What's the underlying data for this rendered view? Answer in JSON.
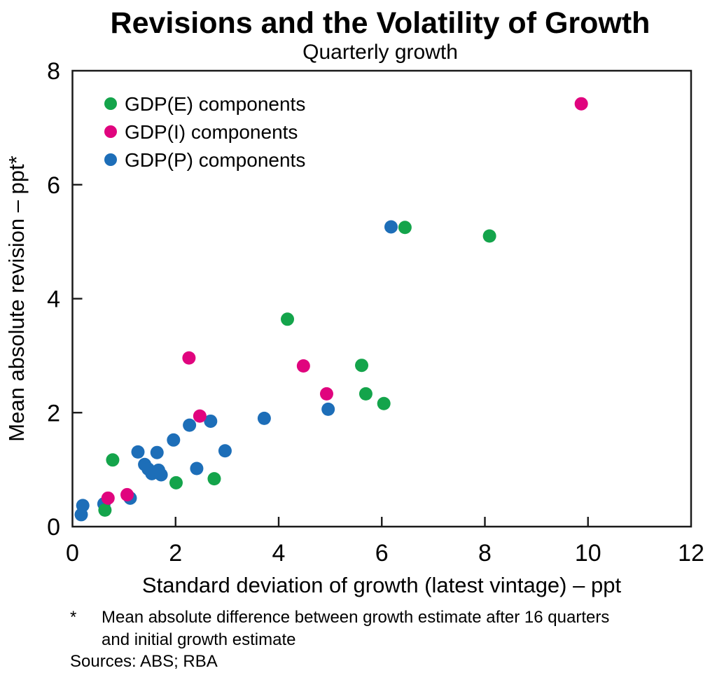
{
  "title": "Revisions and the Volatility of Growth",
  "subtitle": "Quarterly growth",
  "footnote": {
    "marker": "*",
    "lines": [
      "Mean absolute difference between growth estimate after 16 quarters",
      "and initial growth estimate"
    ]
  },
  "sources": "Sources: ABS; RBA",
  "chart_data": {
    "type": "scatter",
    "title": "Revisions and the Volatility of Growth",
    "subtitle": "Quarterly growth",
    "xlabel": "Standard deviation of growth (latest vintage) – ppt",
    "ylabel": "Mean absolute revision – ppt*",
    "xlim": [
      0,
      12
    ],
    "ylim": [
      0,
      8
    ],
    "x_ticks": [
      0,
      2,
      4,
      6,
      8,
      10,
      12
    ],
    "y_ticks": [
      0,
      2,
      4,
      6,
      8
    ],
    "grid": false,
    "legend_position": "top-left-inside",
    "frame_color": "#1a1a1a",
    "marker_radius": 9.5,
    "series": [
      {
        "name": "GDP(E) components",
        "color": "#14a44b",
        "z_order": 1,
        "points": [
          [
            0.63,
            0.29
          ],
          [
            0.78,
            1.17
          ],
          [
            2.01,
            0.77
          ],
          [
            2.75,
            0.84
          ],
          [
            4.17,
            3.64
          ],
          [
            5.61,
            2.83
          ],
          [
            5.69,
            2.33
          ],
          [
            6.04,
            2.16
          ],
          [
            6.45,
            5.25
          ],
          [
            8.09,
            5.1
          ]
        ]
      },
      {
        "name": "GDP(I) components",
        "color": "#e0047e",
        "z_order": 2,
        "points": [
          [
            0.69,
            0.5
          ],
          [
            1.06,
            0.56
          ],
          [
            2.26,
            2.96
          ],
          [
            2.47,
            1.94
          ],
          [
            4.48,
            2.82
          ],
          [
            4.93,
            2.33
          ],
          [
            9.87,
            7.42
          ]
        ]
      },
      {
        "name": "GDP(P) components",
        "color": "#1d6eb8",
        "z_order": 0,
        "points": [
          [
            0.17,
            0.21
          ],
          [
            0.2,
            0.37
          ],
          [
            0.61,
            0.4
          ],
          [
            1.12,
            0.5
          ],
          [
            1.27,
            1.31
          ],
          [
            1.4,
            1.09
          ],
          [
            1.47,
            1.01
          ],
          [
            1.54,
            0.93
          ],
          [
            1.64,
            1.3
          ],
          [
            1.67,
            0.99
          ],
          [
            1.72,
            0.91
          ],
          [
            1.96,
            1.52
          ],
          [
            2.27,
            1.78
          ],
          [
            2.41,
            1.02
          ],
          [
            2.68,
            1.85
          ],
          [
            2.96,
            1.33
          ],
          [
            3.72,
            1.9
          ],
          [
            4.96,
            2.06
          ],
          [
            6.18,
            5.26
          ]
        ]
      }
    ]
  }
}
